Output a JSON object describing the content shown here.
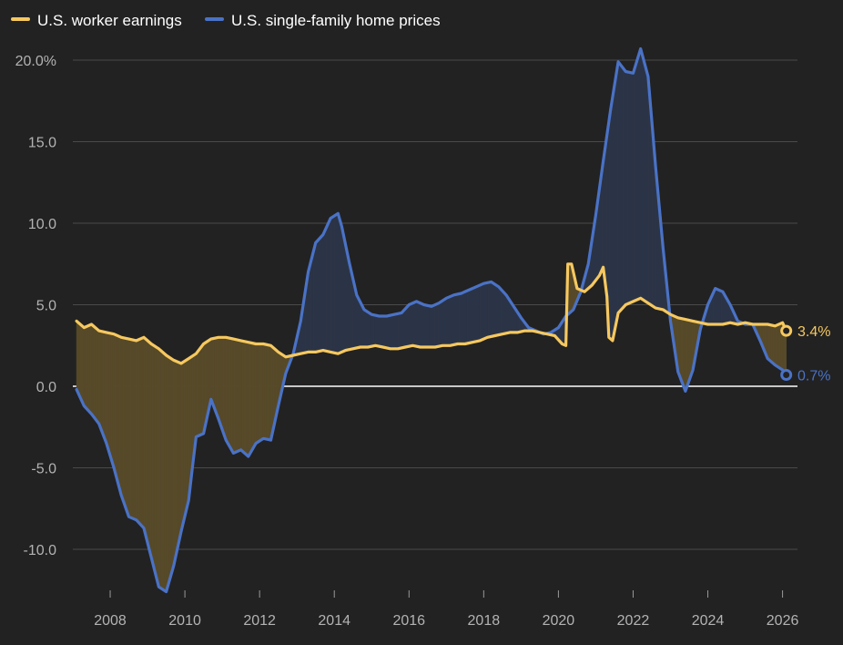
{
  "chart_data": {
    "type": "line",
    "title": "",
    "xlabel": "",
    "ylabel": "",
    "xlim": [
      2007.0,
      2026.4
    ],
    "ylim": [
      -12.8,
      21.5
    ],
    "x_ticks": [
      2008,
      2010,
      2012,
      2014,
      2016,
      2018,
      2020,
      2022,
      2024,
      2026
    ],
    "y_ticks": [
      {
        "value": 20,
        "label": "20.0%"
      },
      {
        "value": 15,
        "label": "15.0"
      },
      {
        "value": 10,
        "label": "10.0"
      },
      {
        "value": 5,
        "label": "5.0"
      },
      {
        "value": 0,
        "label": "0.0"
      },
      {
        "value": -5,
        "label": "-5.0"
      },
      {
        "value": -10,
        "label": "-10.0"
      }
    ],
    "grid": true,
    "legend": "top-left",
    "series": [
      {
        "name": "U.S. worker earnings",
        "color": "#f6c85f",
        "end_label": "3.4%",
        "points": [
          [
            2007.1,
            4.0
          ],
          [
            2007.3,
            3.6
          ],
          [
            2007.5,
            3.8
          ],
          [
            2007.7,
            3.4
          ],
          [
            2007.9,
            3.3
          ],
          [
            2008.1,
            3.2
          ],
          [
            2008.3,
            3.0
          ],
          [
            2008.5,
            2.9
          ],
          [
            2008.7,
            2.8
          ],
          [
            2008.9,
            3.0
          ],
          [
            2009.1,
            2.6
          ],
          [
            2009.3,
            2.3
          ],
          [
            2009.5,
            1.9
          ],
          [
            2009.7,
            1.6
          ],
          [
            2009.9,
            1.4
          ],
          [
            2010.1,
            1.7
          ],
          [
            2010.3,
            2.0
          ],
          [
            2010.5,
            2.6
          ],
          [
            2010.7,
            2.9
          ],
          [
            2010.9,
            3.0
          ],
          [
            2011.1,
            3.0
          ],
          [
            2011.3,
            2.9
          ],
          [
            2011.5,
            2.8
          ],
          [
            2011.7,
            2.7
          ],
          [
            2011.9,
            2.6
          ],
          [
            2012.1,
            2.6
          ],
          [
            2012.3,
            2.5
          ],
          [
            2012.5,
            2.1
          ],
          [
            2012.7,
            1.8
          ],
          [
            2012.9,
            1.9
          ],
          [
            2013.1,
            2.0
          ],
          [
            2013.3,
            2.1
          ],
          [
            2013.5,
            2.1
          ],
          [
            2013.7,
            2.2
          ],
          [
            2013.9,
            2.1
          ],
          [
            2014.1,
            2.0
          ],
          [
            2014.3,
            2.2
          ],
          [
            2014.5,
            2.3
          ],
          [
            2014.7,
            2.4
          ],
          [
            2014.9,
            2.4
          ],
          [
            2015.1,
            2.5
          ],
          [
            2015.3,
            2.4
          ],
          [
            2015.5,
            2.3
          ],
          [
            2015.7,
            2.3
          ],
          [
            2015.9,
            2.4
          ],
          [
            2016.1,
            2.5
          ],
          [
            2016.3,
            2.4
          ],
          [
            2016.5,
            2.4
          ],
          [
            2016.7,
            2.4
          ],
          [
            2016.9,
            2.5
          ],
          [
            2017.1,
            2.5
          ],
          [
            2017.3,
            2.6
          ],
          [
            2017.5,
            2.6
          ],
          [
            2017.7,
            2.7
          ],
          [
            2017.9,
            2.8
          ],
          [
            2018.1,
            3.0
          ],
          [
            2018.3,
            3.1
          ],
          [
            2018.5,
            3.2
          ],
          [
            2018.7,
            3.3
          ],
          [
            2018.9,
            3.3
          ],
          [
            2019.1,
            3.4
          ],
          [
            2019.3,
            3.4
          ],
          [
            2019.5,
            3.3
          ],
          [
            2019.7,
            3.2
          ],
          [
            2019.9,
            3.1
          ],
          [
            2020.1,
            2.6
          ],
          [
            2020.2,
            2.5
          ],
          [
            2020.25,
            7.5
          ],
          [
            2020.35,
            7.5
          ],
          [
            2020.5,
            6.0
          ],
          [
            2020.7,
            5.8
          ],
          [
            2020.9,
            6.2
          ],
          [
            2021.1,
            6.8
          ],
          [
            2021.2,
            7.3
          ],
          [
            2021.3,
            5.5
          ],
          [
            2021.35,
            3.0
          ],
          [
            2021.45,
            2.8
          ],
          [
            2021.6,
            4.5
          ],
          [
            2021.8,
            5.0
          ],
          [
            2022.0,
            5.2
          ],
          [
            2022.2,
            5.4
          ],
          [
            2022.4,
            5.1
          ],
          [
            2022.6,
            4.8
          ],
          [
            2022.8,
            4.7
          ],
          [
            2023.0,
            4.4
          ],
          [
            2023.2,
            4.2
          ],
          [
            2023.4,
            4.1
          ],
          [
            2023.6,
            4.0
          ],
          [
            2023.8,
            3.9
          ],
          [
            2024.0,
            3.8
          ],
          [
            2024.2,
            3.8
          ],
          [
            2024.4,
            3.8
          ],
          [
            2024.6,
            3.9
          ],
          [
            2024.8,
            3.8
          ],
          [
            2025.0,
            3.9
          ],
          [
            2025.2,
            3.8
          ],
          [
            2025.4,
            3.8
          ],
          [
            2025.6,
            3.8
          ],
          [
            2025.8,
            3.7
          ],
          [
            2026.0,
            3.9
          ],
          [
            2026.1,
            3.4
          ]
        ]
      },
      {
        "name": "U.S. single-family home prices",
        "color": "#4a72c6",
        "end_label": "0.7%",
        "points": [
          [
            2007.1,
            -0.2
          ],
          [
            2007.3,
            -1.2
          ],
          [
            2007.5,
            -1.7
          ],
          [
            2007.7,
            -2.3
          ],
          [
            2007.9,
            -3.5
          ],
          [
            2008.1,
            -5.0
          ],
          [
            2008.3,
            -6.7
          ],
          [
            2008.5,
            -8.0
          ],
          [
            2008.7,
            -8.2
          ],
          [
            2008.9,
            -8.7
          ],
          [
            2009.1,
            -10.5
          ],
          [
            2009.3,
            -12.3
          ],
          [
            2009.5,
            -12.6
          ],
          [
            2009.7,
            -11.0
          ],
          [
            2009.9,
            -8.9
          ],
          [
            2010.1,
            -7.0
          ],
          [
            2010.2,
            -5.0
          ],
          [
            2010.3,
            -3.1
          ],
          [
            2010.5,
            -2.9
          ],
          [
            2010.7,
            -0.8
          ],
          [
            2010.9,
            -2.0
          ],
          [
            2011.1,
            -3.3
          ],
          [
            2011.3,
            -4.1
          ],
          [
            2011.5,
            -3.9
          ],
          [
            2011.7,
            -4.3
          ],
          [
            2011.9,
            -3.5
          ],
          [
            2012.1,
            -3.2
          ],
          [
            2012.3,
            -3.3
          ],
          [
            2012.5,
            -1.2
          ],
          [
            2012.7,
            0.8
          ],
          [
            2012.9,
            2.0
          ],
          [
            2013.1,
            4.0
          ],
          [
            2013.3,
            7.0
          ],
          [
            2013.5,
            8.8
          ],
          [
            2013.7,
            9.3
          ],
          [
            2013.9,
            10.3
          ],
          [
            2014.1,
            10.6
          ],
          [
            2014.2,
            9.8
          ],
          [
            2014.4,
            7.6
          ],
          [
            2014.6,
            5.6
          ],
          [
            2014.8,
            4.7
          ],
          [
            2015.0,
            4.4
          ],
          [
            2015.2,
            4.3
          ],
          [
            2015.4,
            4.3
          ],
          [
            2015.6,
            4.4
          ],
          [
            2015.8,
            4.5
          ],
          [
            2016.0,
            5.0
          ],
          [
            2016.2,
            5.2
          ],
          [
            2016.4,
            5.0
          ],
          [
            2016.6,
            4.9
          ],
          [
            2016.8,
            5.1
          ],
          [
            2017.0,
            5.4
          ],
          [
            2017.2,
            5.6
          ],
          [
            2017.4,
            5.7
          ],
          [
            2017.6,
            5.9
          ],
          [
            2017.8,
            6.1
          ],
          [
            2018.0,
            6.3
          ],
          [
            2018.2,
            6.4
          ],
          [
            2018.4,
            6.1
          ],
          [
            2018.6,
            5.6
          ],
          [
            2018.8,
            4.9
          ],
          [
            2019.0,
            4.2
          ],
          [
            2019.2,
            3.6
          ],
          [
            2019.4,
            3.4
          ],
          [
            2019.6,
            3.2
          ],
          [
            2019.8,
            3.3
          ],
          [
            2020.0,
            3.6
          ],
          [
            2020.2,
            4.3
          ],
          [
            2020.4,
            4.7
          ],
          [
            2020.6,
            5.8
          ],
          [
            2020.8,
            7.5
          ],
          [
            2021.0,
            10.5
          ],
          [
            2021.2,
            13.8
          ],
          [
            2021.4,
            17.0
          ],
          [
            2021.6,
            19.9
          ],
          [
            2021.8,
            19.3
          ],
          [
            2022.0,
            19.2
          ],
          [
            2022.2,
            20.7
          ],
          [
            2022.4,
            19.0
          ],
          [
            2022.6,
            13.5
          ],
          [
            2022.8,
            8.5
          ],
          [
            2023.0,
            4.0
          ],
          [
            2023.2,
            0.9
          ],
          [
            2023.4,
            -0.3
          ],
          [
            2023.6,
            1.0
          ],
          [
            2023.8,
            3.5
          ],
          [
            2024.0,
            5.0
          ],
          [
            2024.2,
            6.0
          ],
          [
            2024.4,
            5.8
          ],
          [
            2024.6,
            5.0
          ],
          [
            2024.8,
            4.0
          ],
          [
            2025.0,
            3.8
          ],
          [
            2025.2,
            3.8
          ],
          [
            2025.4,
            2.8
          ],
          [
            2025.6,
            1.7
          ],
          [
            2025.8,
            1.3
          ],
          [
            2026.0,
            1.0
          ],
          [
            2026.1,
            0.7
          ]
        ]
      }
    ],
    "fill_colors": {
      "earnings_above": "#574a2a",
      "prices_above": "#2c3547"
    }
  }
}
